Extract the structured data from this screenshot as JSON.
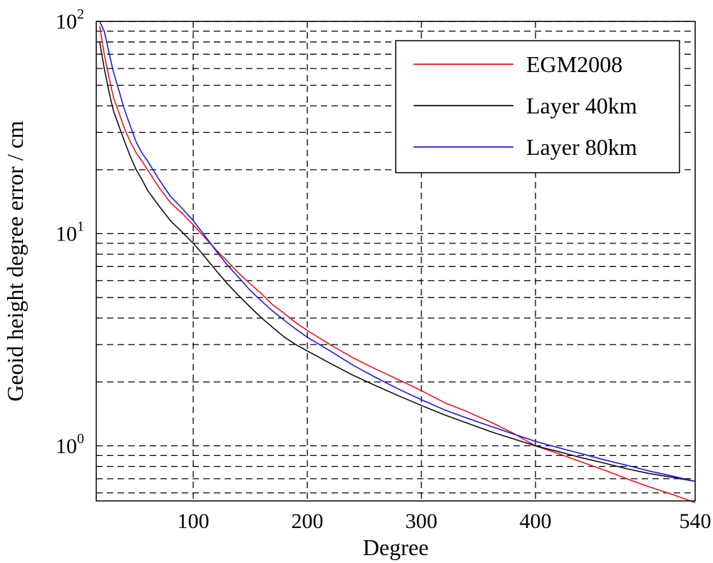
{
  "chart_data": {
    "type": "line",
    "title": "",
    "xlabel": "Degree",
    "ylabel": "Geoid height degree error / cm",
    "x_scale": "linear",
    "y_scale": "log",
    "xlim": [
      15,
      540
    ],
    "ylim": [
      0.55,
      100
    ],
    "x_ticks": [
      100,
      200,
      300,
      400,
      540
    ],
    "x_tick_labels": [
      "100",
      "200",
      "300",
      "400",
      "540"
    ],
    "y_decades": [
      {
        "value": 1,
        "base": "10",
        "exp": "0"
      },
      {
        "value": 10,
        "base": "10",
        "exp": "1"
      },
      {
        "value": 100,
        "base": "10",
        "exp": "2"
      }
    ],
    "grid": true,
    "legend_position": "top-right",
    "series": [
      {
        "name": "EGM2008",
        "color": "#e8161b",
        "x": [
          18,
          22,
          26,
          30,
          35,
          40,
          45,
          50,
          55,
          60,
          70,
          80,
          90,
          100,
          110,
          120,
          130,
          140,
          150,
          160,
          170,
          180,
          190,
          200,
          220,
          240,
          260,
          280,
          300,
          320,
          340,
          360,
          380,
          400,
          420,
          440,
          460,
          480,
          500,
          520,
          540
        ],
        "y": [
          95,
          70,
          55,
          44,
          37,
          31,
          27,
          24,
          22,
          20,
          16.5,
          14,
          12.5,
          11,
          9.6,
          8.4,
          7.4,
          6.5,
          5.8,
          5.2,
          4.6,
          4.2,
          3.8,
          3.5,
          3.0,
          2.6,
          2.3,
          2.05,
          1.82,
          1.6,
          1.45,
          1.3,
          1.15,
          1.0,
          0.92,
          0.84,
          0.77,
          0.7,
          0.64,
          0.59,
          0.54
        ]
      },
      {
        "name": "Layer 40km",
        "color": "#111111",
        "x": [
          18,
          22,
          26,
          30,
          35,
          40,
          45,
          50,
          55,
          60,
          70,
          80,
          90,
          100,
          110,
          120,
          130,
          140,
          150,
          160,
          170,
          180,
          190,
          200,
          220,
          240,
          260,
          280,
          300,
          320,
          340,
          360,
          380,
          400,
          420,
          440,
          460,
          480,
          500,
          520,
          540
        ],
        "y": [
          80,
          60,
          47,
          38,
          32,
          27,
          23,
          20,
          18,
          16,
          13.5,
          11.5,
          10.2,
          9.0,
          7.8,
          6.7,
          5.8,
          5.1,
          4.5,
          4.0,
          3.6,
          3.25,
          3.0,
          2.8,
          2.45,
          2.15,
          1.92,
          1.72,
          1.55,
          1.4,
          1.28,
          1.17,
          1.08,
          1.0,
          0.94,
          0.88,
          0.83,
          0.78,
          0.74,
          0.71,
          0.68
        ]
      },
      {
        "name": "Layer 80km",
        "color": "#1a1ae6",
        "x": [
          18,
          22,
          26,
          30,
          35,
          40,
          45,
          50,
          55,
          60,
          70,
          80,
          90,
          100,
          110,
          120,
          130,
          140,
          150,
          160,
          170,
          180,
          190,
          200,
          220,
          240,
          260,
          280,
          300,
          320,
          340,
          360,
          380,
          400,
          420,
          440,
          460,
          480,
          500,
          520,
          540
        ],
        "y": [
          100,
          90,
          72,
          58,
          47,
          38,
          32,
          27,
          24,
          22,
          18,
          15,
          13.2,
          11.5,
          9.8,
          8.3,
          7.1,
          6.2,
          5.4,
          4.8,
          4.3,
          3.9,
          3.55,
          3.25,
          2.8,
          2.4,
          2.1,
          1.85,
          1.65,
          1.48,
          1.35,
          1.24,
          1.14,
          1.05,
          0.98,
          0.92,
          0.86,
          0.81,
          0.76,
          0.72,
          0.68
        ]
      }
    ]
  }
}
